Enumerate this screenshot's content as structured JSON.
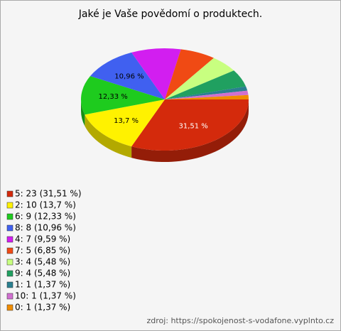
{
  "chart_data": {
    "type": "pie3d",
    "title": "Jaké je Vaše povědomí o produktech.",
    "categories": [
      "5",
      "2",
      "6",
      "8",
      "4",
      "7",
      "3",
      "9",
      "1",
      "10",
      "0"
    ],
    "values": [
      31.51,
      13.7,
      12.33,
      10.96,
      9.59,
      6.85,
      5.48,
      5.48,
      1.37,
      1.37,
      1.37
    ],
    "value_labels": [
      "31,51 %",
      "13,7 %",
      "12,33 %",
      "10,96 %",
      null,
      null,
      null,
      null,
      null,
      null,
      null
    ],
    "legend_labels": [
      "5: 23 (31,51 %)",
      "2: 10 (13,7 %)",
      "6: 9 (12,33 %)",
      "8: 8 (10,96 %)",
      "4: 7 (9,59 %)",
      "7: 5 (6,85 %)",
      "3: 4 (5,48 %)",
      "9: 4 (5,48 %)",
      "1: 1 (1,37 %)",
      "10: 1 (1,37 %)",
      "0: 1 (1,37 %)"
    ],
    "colors": [
      "#d42a0c",
      "#fff200",
      "#1ecb1e",
      "#4060f0",
      "#d21ef0",
      "#f04a14",
      "#c8ff80",
      "#20a060",
      "#2a8090",
      "#d070d0",
      "#f08c00"
    ],
    "source": "zdroj: https://spokojenost-s-vodafone.vyplnto.cz"
  }
}
